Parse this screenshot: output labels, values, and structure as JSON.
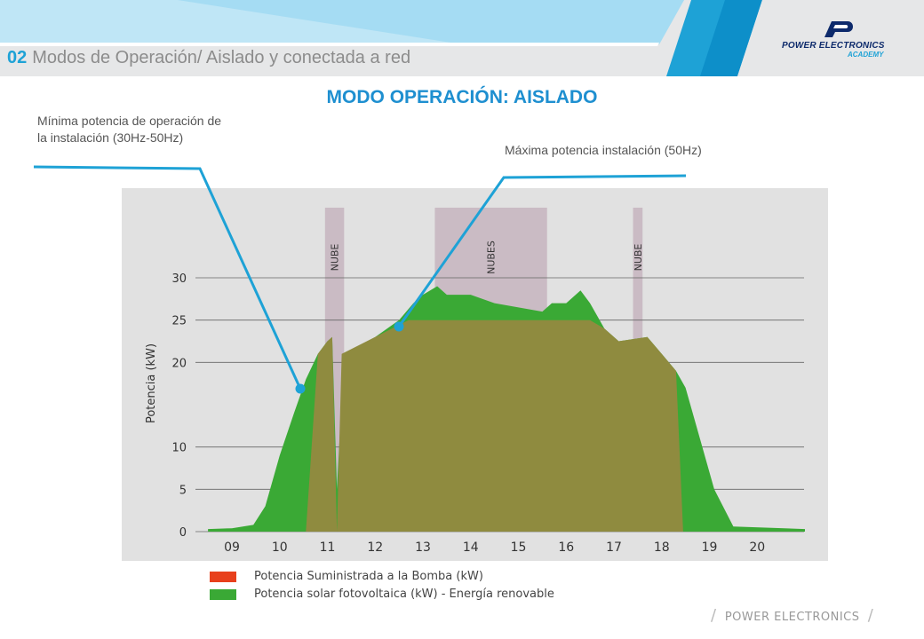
{
  "header": {
    "section_number": "02",
    "section_title": "Modos de Operación/ Aislado y conectada a red",
    "logo_line1": "POWER ELECTRONICS",
    "logo_line2": "ACADEMY"
  },
  "title": "MODO OPERACIÓN: AISLADO",
  "annotations": {
    "min": "Mínima potencia de operación de la instalación (30Hz-50Hz)",
    "max": "Máxima potencia instalación (50Hz)"
  },
  "footer": "POWER ELECTRONICS",
  "colors": {
    "accent": "#1ea2d6",
    "title": "#1e8fd0",
    "green": "#3aa935",
    "supplied": "#8f8b3f",
    "legend_red": "#e8401c",
    "cloud": "#c8b7c1",
    "chart_bg": "#e1e1e1"
  },
  "chart_data": {
    "type": "area",
    "ylabel": "Potencia (kW)",
    "xlabel": "",
    "ylim": [
      0,
      30
    ],
    "yticks": [
      0,
      5,
      10,
      20,
      25,
      30
    ],
    "xlim": [
      8.5,
      21
    ],
    "xticks": [
      "09",
      "10",
      "11",
      "12",
      "13",
      "14",
      "15",
      "16",
      "17",
      "18",
      "19",
      "20"
    ],
    "grid": true,
    "legend": "bottom",
    "clouds": [
      {
        "label": "NUBE",
        "start": 10.95,
        "end": 11.35
      },
      {
        "label": "NUBES",
        "start": 13.25,
        "end": 15.6
      },
      {
        "label": "NUBE",
        "start": 17.4,
        "end": 17.6
      }
    ],
    "series": [
      {
        "name": "Potencia Suministrada a la Bomba (kW)",
        "color": "#e8401c",
        "x": [
          10.55,
          10.8,
          11.0,
          11.1,
          11.2,
          11.3,
          12.0,
          12.7,
          13.2,
          13.5,
          15.7,
          16.2,
          16.5,
          16.8,
          17.1,
          17.7,
          18.0,
          18.3,
          18.45
        ],
        "y": [
          0,
          21,
          22.5,
          23,
          0,
          21,
          23,
          25,
          25,
          25,
          25,
          25,
          25,
          24,
          22.5,
          23,
          21,
          19,
          0
        ]
      },
      {
        "name": "Potencia solar fotovoltaica (kW) - Energía renovable",
        "color": "#3aa935",
        "x": [
          8.5,
          9.0,
          9.45,
          9.7,
          10.0,
          10.3,
          10.55,
          10.8,
          11.0,
          11.1,
          11.2,
          11.35,
          12.0,
          12.5,
          12.8,
          13.0,
          13.3,
          13.5,
          14.0,
          14.5,
          15.0,
          15.5,
          15.7,
          16.0,
          16.3,
          16.5,
          16.8,
          17.1,
          17.7,
          18.0,
          18.3,
          18.5,
          18.8,
          19.1,
          19.5,
          21.0
        ],
        "y": [
          0.3,
          0.4,
          0.8,
          3,
          9,
          14,
          18,
          21,
          22.5,
          23,
          5,
          21,
          23,
          25,
          27,
          28,
          29,
          28,
          28,
          27,
          26.5,
          26,
          27,
          27,
          28.5,
          27,
          24,
          22.5,
          23,
          21,
          19,
          17,
          11,
          5,
          0.6,
          0.3
        ]
      }
    ]
  }
}
